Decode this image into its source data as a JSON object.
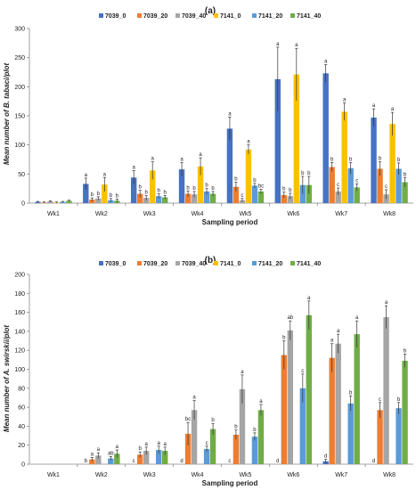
{
  "colors": {
    "7039_0": "#4472c4",
    "7039_20": "#ed7d31",
    "7039_40": "#a5a5a5",
    "7141_0": "#ffc000",
    "7141_20": "#5b9bd5",
    "7141_40": "#70ad47"
  },
  "chart_data": [
    {
      "type": "bar",
      "panel_label": "(a)",
      "xlabel": "Sampling period",
      "ylabel": "Mean number of B. tabaci/plot",
      "ylim": [
        0,
        300
      ],
      "yticks": [
        0,
        50,
        100,
        150,
        200,
        250,
        300
      ],
      "grid": false,
      "legend_position": "top",
      "categories": [
        "Wk1",
        "Wk2",
        "Wk3",
        "Wk4",
        "Wk5",
        "Wk6",
        "Wk7",
        "Wk8"
      ],
      "series": [
        {
          "name": "7039_0",
          "color_key": "7039_0",
          "values": [
            2,
            33,
            44,
            58,
            128,
            213,
            223,
            147
          ],
          "errors": [
            1,
            10,
            12,
            12,
            20,
            55,
            15,
            15
          ],
          "letters": [
            "",
            "a",
            "a",
            "a",
            "a",
            "a",
            "a",
            "a"
          ]
        },
        {
          "name": "7039_20",
          "color_key": "7039_20",
          "values": [
            1,
            6,
            16,
            16,
            28,
            14,
            62,
            59
          ],
          "errors": [
            1,
            3,
            6,
            5,
            8,
            5,
            8,
            12
          ],
          "letters": [
            "",
            "b",
            "b",
            "b",
            "b",
            "b",
            "b",
            "b"
          ]
        },
        {
          "name": "7039_40",
          "color_key": "7039_40",
          "values": [
            3,
            8,
            9,
            15,
            5,
            12,
            20,
            15
          ],
          "errors": [
            1,
            3,
            4,
            5,
            3,
            5,
            6,
            8
          ],
          "letters": [
            "",
            "b",
            "b",
            "b",
            "c",
            "b",
            "c",
            "c"
          ]
        },
        {
          "name": "7141_0",
          "color_key": "7141_0",
          "values": [
            1,
            32,
            56,
            63,
            92,
            221,
            157,
            136
          ],
          "errors": [
            1,
            12,
            15,
            15,
            8,
            45,
            15,
            20
          ],
          "letters": [
            "",
            "a",
            "a",
            "a",
            "a",
            "a",
            "a",
            "a"
          ]
        },
        {
          "name": "7141_20",
          "color_key": "7141_20",
          "values": [
            2,
            5,
            12,
            20,
            30,
            31,
            60,
            59
          ],
          "errors": [
            1,
            3,
            4,
            5,
            4,
            15,
            10,
            10
          ],
          "letters": [
            "",
            "b",
            "b",
            "b",
            "b",
            "b",
            "b",
            "b"
          ]
        },
        {
          "name": "7141_40",
          "color_key": "7141_40",
          "values": [
            4,
            4,
            10,
            16,
            20,
            31,
            27,
            36
          ],
          "errors": [
            1,
            3,
            3,
            4,
            4,
            15,
            6,
            8
          ],
          "letters": [
            "",
            "b",
            "b",
            "b",
            "bc",
            "b",
            "c",
            "b"
          ]
        }
      ]
    },
    {
      "type": "bar",
      "panel_label": "(b)",
      "xlabel": "Sampling period",
      "ylabel": "Mean number of A. swirskii/plot",
      "ylim": [
        0,
        200
      ],
      "yticks": [
        0,
        20,
        40,
        60,
        80,
        100,
        120,
        140,
        160,
        180,
        200
      ],
      "grid": false,
      "legend_position": "top",
      "categories": [
        "Wk1",
        "Wk2",
        "Wk3",
        "Wk4",
        "Wk5",
        "Wk6",
        "Wk7",
        "Wk8"
      ],
      "series": [
        {
          "name": "7039_0",
          "color_key": "7039_0",
          "values": [
            0,
            0,
            0,
            0,
            0,
            0,
            3,
            0
          ],
          "errors": [
            0,
            0,
            0,
            0,
            0,
            0,
            2,
            0
          ],
          "letters": [
            "",
            "b",
            "c",
            "d",
            "c",
            "d",
            "d",
            "d"
          ]
        },
        {
          "name": "7039_20",
          "color_key": "7039_20",
          "values": [
            0,
            5,
            10,
            32,
            31,
            115,
            112,
            57
          ],
          "errors": [
            0,
            2,
            3,
            12,
            5,
            15,
            15,
            8
          ],
          "letters": [
            "",
            "a",
            "b",
            "bc",
            "b",
            "b",
            "a",
            "c"
          ]
        },
        {
          "name": "7039_40",
          "color_key": "7039_40",
          "values": [
            0,
            9,
            14,
            57,
            79,
            141,
            127,
            155
          ],
          "errors": [
            0,
            3,
            4,
            10,
            15,
            10,
            10,
            12
          ],
          "letters": [
            "",
            "a",
            "a",
            "a",
            "a",
            "ab",
            "a",
            "a"
          ]
        },
        {
          "name": "7141_0",
          "color_key": "7141_0",
          "values": [
            0,
            0,
            0,
            0,
            0,
            0,
            0,
            0
          ],
          "errors": [
            0,
            0,
            0,
            0,
            0,
            0,
            0,
            0
          ],
          "letters": [
            "",
            "",
            "",
            "",
            "",
            "",
            "",
            ""
          ]
        },
        {
          "name": "7141_20",
          "color_key": "7141_20",
          "values": [
            0,
            6,
            15,
            16,
            29,
            80,
            64,
            59
          ],
          "errors": [
            0,
            2,
            4,
            3,
            4,
            15,
            8,
            6
          ],
          "letters": [
            "",
            "ab",
            "a",
            "c",
            "b",
            "c",
            "b",
            "b"
          ]
        },
        {
          "name": "7141_40",
          "color_key": "7141_40",
          "values": [
            0,
            11,
            14,
            37,
            57,
            157,
            137,
            109
          ],
          "errors": [
            0,
            4,
            4,
            6,
            6,
            15,
            14,
            7
          ],
          "letters": [
            "",
            "a",
            "a",
            "b",
            "a",
            "a",
            "a",
            "b"
          ]
        }
      ]
    }
  ]
}
